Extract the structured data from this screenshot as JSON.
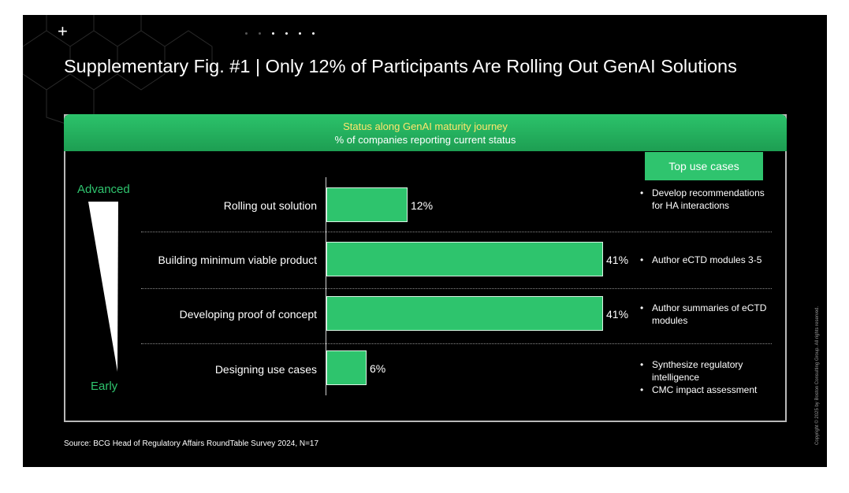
{
  "title": "Supplementary Fig. #1 | Only 12% of Participants Are Rolling Out GenAI Solutions",
  "header": {
    "line1": "Status along GenAI maturity journey",
    "line2": "% of companies reporting current status"
  },
  "scale": {
    "top": "Advanced",
    "bottom": "Early"
  },
  "use_cases_header": "Top use cases",
  "use_cases": [
    [
      "Develop recommendations for HA interactions"
    ],
    [
      "Author eCTD modules 3-5"
    ],
    [
      "Author summaries of eCTD modules"
    ],
    [
      "Synthesize regulatory intelligence",
      "CMC impact assessment"
    ]
  ],
  "source": "Source: BCG Head of Regulatory Affairs RoundTable Survey 2024, N=17",
  "copyright": "Copyright © 2025 by Boston Consulting Group. All rights reserved.",
  "colors": {
    "accent": "#2ec46d",
    "header_text": "#ffe66d",
    "background": "#000000"
  },
  "chart_data": {
    "type": "bar",
    "orientation": "horizontal",
    "categories": [
      "Rolling out solution",
      "Building minimum viable product",
      "Developing proof of concept",
      "Designing use cases"
    ],
    "values": [
      12,
      41,
      41,
      6
    ],
    "value_labels": [
      "12%",
      "41%",
      "41%",
      "6%"
    ],
    "xlim": [
      0,
      41
    ],
    "grid": false,
    "legend": "none"
  }
}
